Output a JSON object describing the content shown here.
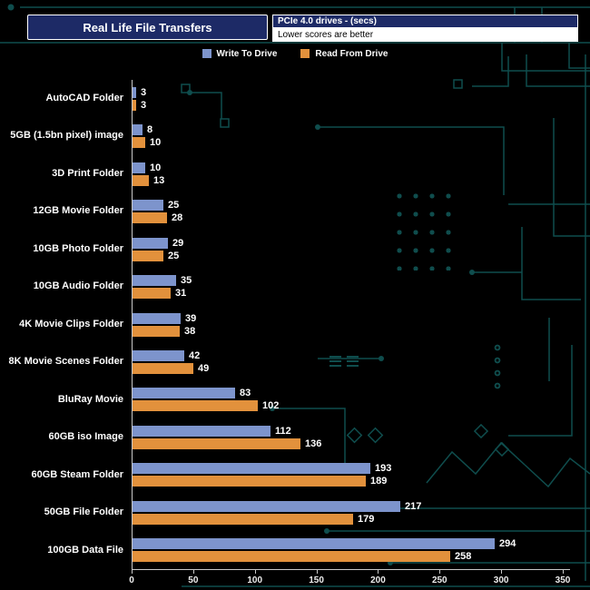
{
  "header": {
    "title": "Real Life File Transfers",
    "drive_info": "PCIe 4.0 drives - (secs)",
    "note": "Lower scores are better"
  },
  "legend": {
    "items": [
      {
        "label": "Write To  Drive",
        "color": "#7d94cc"
      },
      {
        "label": "Read From  Drive",
        "color": "#e2913c"
      }
    ]
  },
  "chart_data": {
    "type": "bar",
    "orientation": "horizontal",
    "title": "Real Life File Transfers",
    "subtitle": "PCIe 4.0 drives - (secs)",
    "note": "Lower scores are better",
    "lower_is_better": true,
    "categories": [
      "AutoCAD Folder",
      "5GB (1.5bn pixel) image",
      "3D Print Folder",
      "12GB Movie Folder",
      "10GB Photo Folder",
      "10GB Audio Folder",
      "4K Movie Clips Folder",
      "8K Movie Scenes Folder",
      "BluRay Movie",
      "60GB iso Image",
      "60GB Steam Folder",
      "50GB File Folder",
      "100GB Data File"
    ],
    "series": [
      {
        "name": "Write To Drive",
        "color": "#7d94cc",
        "values": [
          3,
          8,
          10,
          25,
          29,
          35,
          39,
          42,
          83,
          112,
          193,
          217,
          294
        ]
      },
      {
        "name": "Read From Drive",
        "color": "#e2913c",
        "values": [
          3,
          10,
          13,
          28,
          25,
          31,
          38,
          49,
          102,
          136,
          189,
          179,
          258
        ]
      }
    ],
    "xlim": [
      0,
      350
    ],
    "xticks": [
      0,
      50,
      100,
      150,
      200,
      250,
      300,
      350
    ],
    "value_labels": true,
    "legend_position": "top"
  },
  "colors": {
    "background": "#000000",
    "header_bg": "#1d2a66",
    "axis": "#c9c9c9",
    "circuit": "#0f4d4d",
    "write_bar": "#7d94cc",
    "read_bar": "#e2913c"
  }
}
